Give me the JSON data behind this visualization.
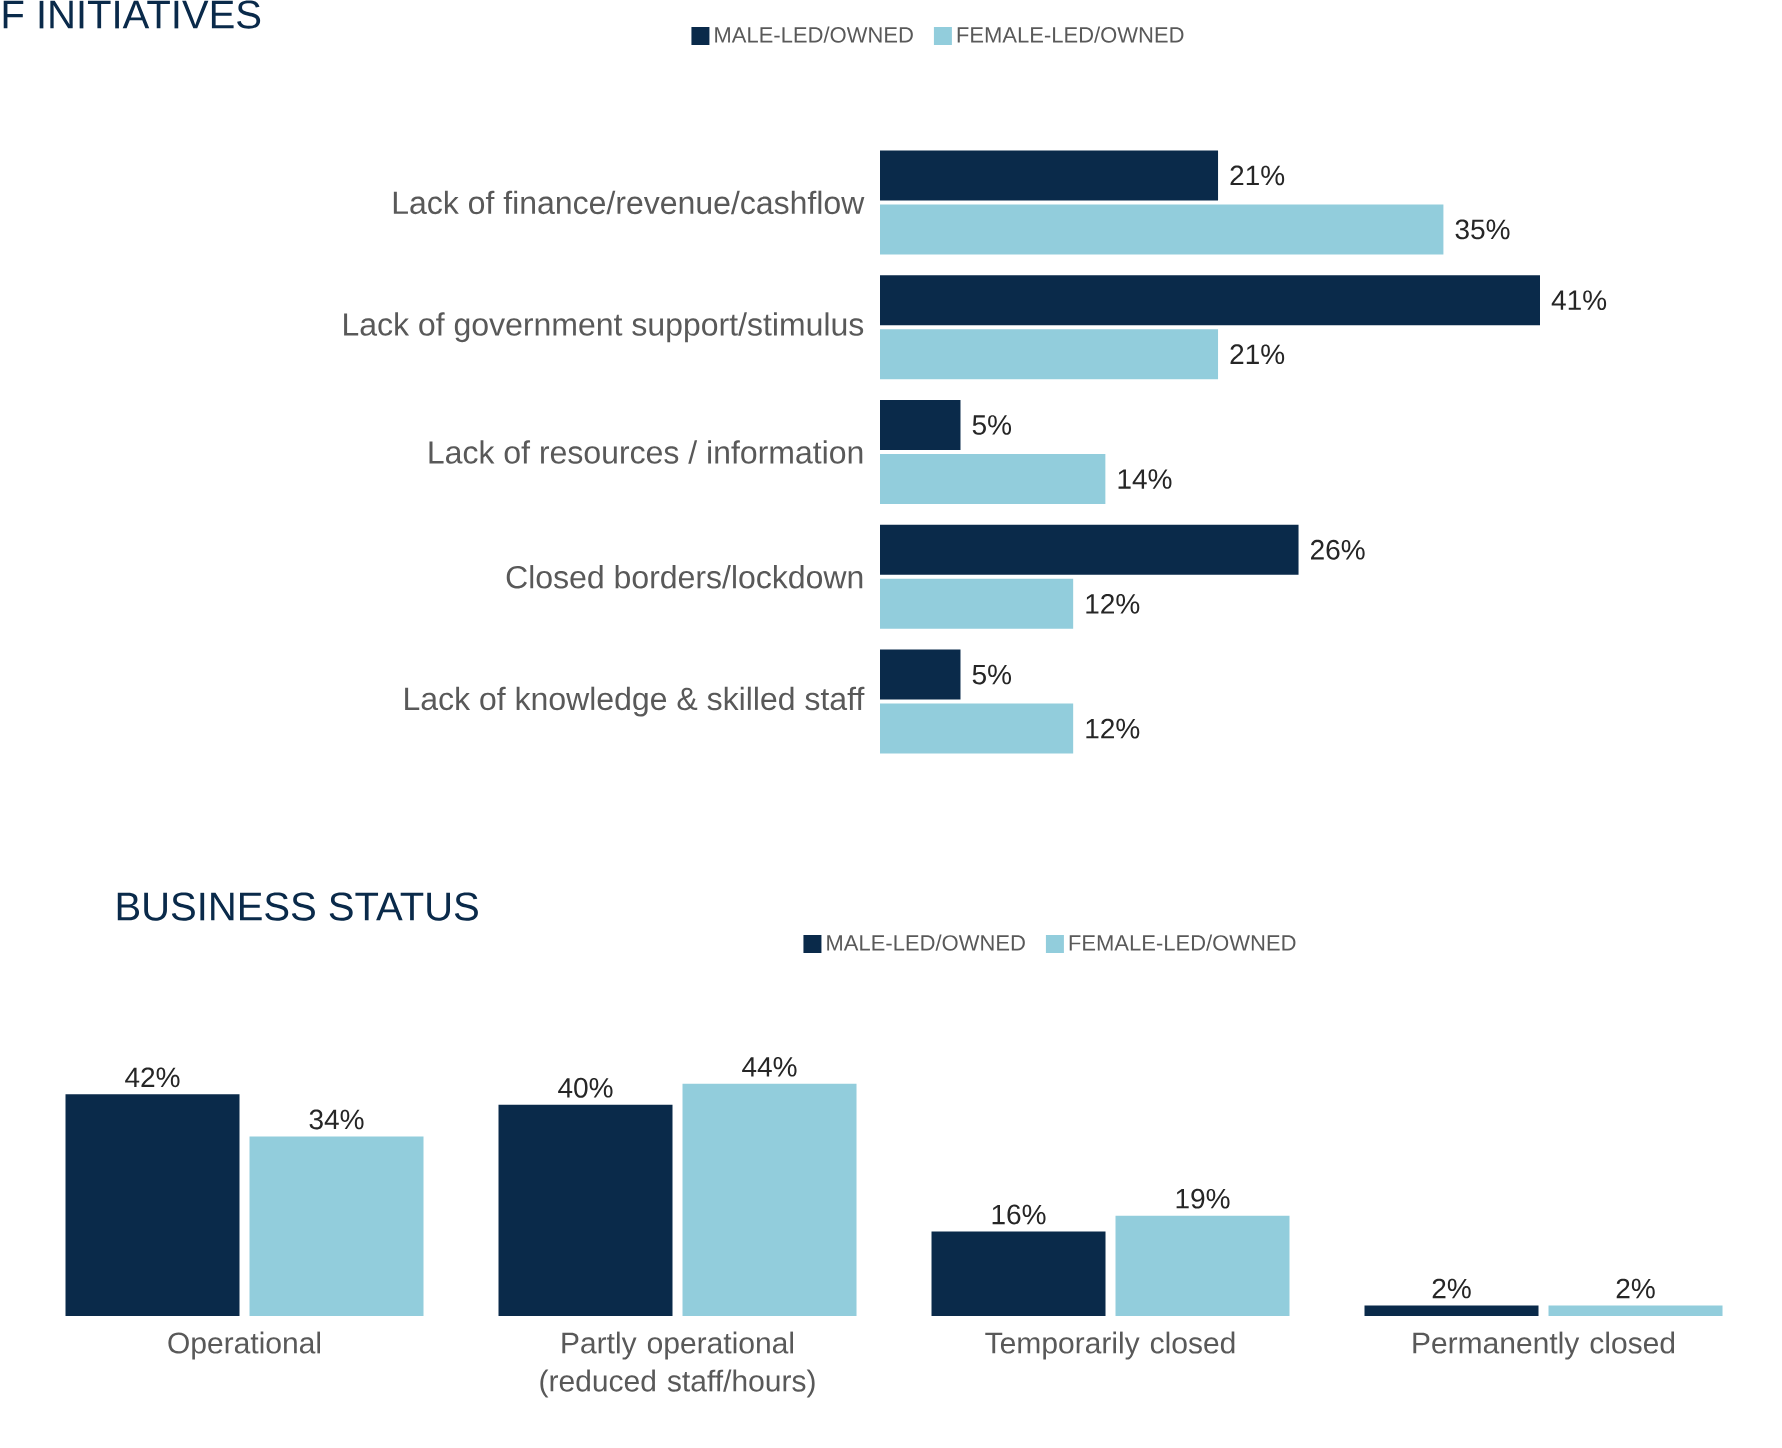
{
  "chart_data": [
    {
      "type": "bar",
      "orientation": "horizontal",
      "title": "F INITIATIVES",
      "legend": "top",
      "categories": [
        "Lack of finance/revenue/cashflow",
        "Lack of government support/stimulus",
        "Lack of resources / information",
        "Closed borders/lockdown",
        "Lack of knowledge & skilled staff"
      ],
      "series": [
        {
          "name": "MALE-LED/OWNED",
          "color": "#0a2a4a",
          "values": [
            21,
            41,
            5,
            26,
            5
          ],
          "value_labels": [
            "21%",
            "41%",
            "5%",
            "26%",
            "5%"
          ]
        },
        {
          "name": "FEMALE-LED/OWNED",
          "color": "#92cddc",
          "values": [
            35,
            21,
            14,
            12,
            12
          ],
          "value_labels": [
            "35%",
            "21%",
            "14%",
            "12%",
            "12%"
          ]
        }
      ]
    },
    {
      "type": "bar",
      "title": "BUSINESS STATUS",
      "legend": "top",
      "categories": [
        "Operational",
        "Partly operational (reduced staff/hours)",
        "Temporarily closed",
        "Permanently closed"
      ],
      "series": [
        {
          "name": "MALE-LED/OWNED",
          "color": "#0a2a4a",
          "values": [
            42,
            40,
            16,
            2
          ],
          "value_labels": [
            "42%",
            "40%",
            "16%",
            "2%"
          ]
        },
        {
          "name": "FEMALE-LED/OWNED",
          "color": "#92cddc",
          "values": [
            34,
            44,
            19,
            2
          ],
          "value_labels": [
            "34%",
            "44%",
            "19%",
            "2%"
          ]
        }
      ]
    }
  ]
}
